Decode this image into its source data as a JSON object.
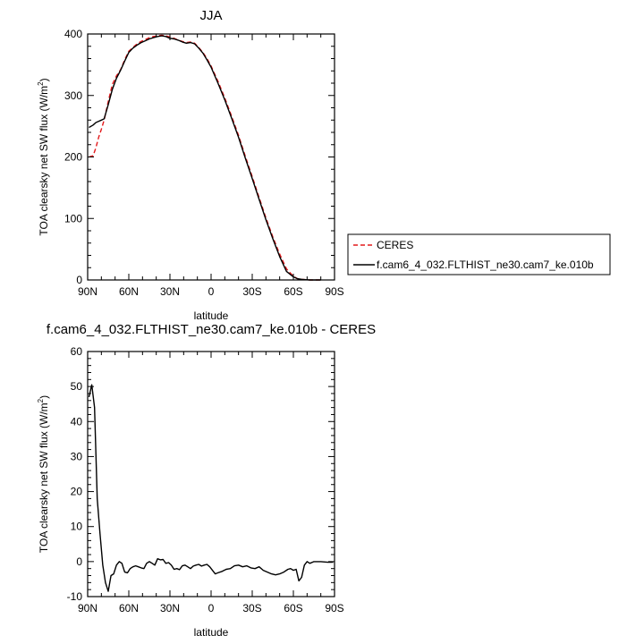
{
  "chart_data": [
    {
      "type": "line",
      "title": "JJA",
      "xlabel": "latitude",
      "ylabel": "TOA clearsky net SW flux (W/m²)",
      "ylabel_parts": [
        "TOA clearsky net SW flux (W/m",
        "2",
        ")"
      ],
      "xlim": [
        90,
        -90
      ],
      "ylim": [
        0,
        400
      ],
      "xticks": [
        90,
        60,
        30,
        0,
        -30,
        -60,
        -90
      ],
      "xtick_labels": [
        "90N",
        "60N",
        "30N",
        "0",
        "30S",
        "60S",
        "90S"
      ],
      "yticks": [
        0,
        100,
        200,
        300,
        400
      ],
      "ytick_labels": [
        "0",
        "100",
        "200",
        "300",
        "400"
      ],
      "grid": false,
      "legend_position": "right",
      "series": [
        {
          "name": "CERES",
          "color": "#e31a1c",
          "dash": "dashed",
          "x": [
            89,
            86,
            84,
            82,
            80,
            78,
            75,
            72,
            69,
            66,
            63,
            60,
            57,
            54,
            51,
            48,
            45,
            42,
            39,
            36,
            33,
            30,
            27,
            24,
            21,
            18,
            15,
            12,
            9,
            6,
            3,
            0,
            -5,
            -10,
            -15,
            -20,
            -25,
            -30,
            -35,
            -40,
            -45,
            -50,
            -55,
            -60,
            -63,
            -66,
            -69,
            -72,
            -76,
            -80
          ],
          "y": [
            200,
            202,
            215,
            232,
            245,
            260,
            290,
            318,
            332,
            342,
            358,
            372,
            378,
            384,
            388,
            391,
            394,
            396,
            397,
            398,
            397,
            395,
            393,
            390,
            388,
            386,
            387,
            385,
            378,
            370,
            360,
            348,
            323,
            296,
            266,
            235,
            201,
            168,
            134,
            101,
            70,
            42,
            18,
            6,
            2,
            1,
            0.5,
            0,
            0,
            0
          ]
        },
        {
          "name": "f.cam6_4_032.FLTHIST_ne30.cam7_ke.010b",
          "color": "#000000",
          "dash": "solid",
          "x": [
            89,
            86,
            84,
            82,
            80,
            78,
            75,
            72,
            69,
            66,
            63,
            60,
            57,
            54,
            51,
            48,
            45,
            42,
            39,
            36,
            33,
            30,
            27,
            24,
            21,
            18,
            15,
            12,
            9,
            6,
            3,
            0,
            -5,
            -10,
            -15,
            -20,
            -25,
            -30,
            -35,
            -40,
            -45,
            -50,
            -55,
            -60,
            -63,
            -66,
            -69,
            -72,
            -76,
            -80
          ],
          "y": [
            248,
            252,
            256,
            258,
            260,
            262,
            285,
            310,
            328,
            341,
            356,
            370,
            377,
            382,
            386,
            389,
            392,
            394,
            396,
            397,
            396,
            393,
            392,
            390,
            387,
            385,
            386,
            384,
            377,
            369,
            358,
            346,
            320,
            293,
            263,
            232,
            198,
            165,
            131,
            98,
            67,
            38,
            14,
            5,
            2,
            1,
            0.5,
            0,
            0,
            0
          ]
        }
      ]
    },
    {
      "type": "line",
      "title": "f.cam6_4_032.FLTHIST_ne30.cam7_ke.010b - CERES",
      "xlabel": "latitude",
      "ylabel": "TOA clearsky net SW flux (W/m²)",
      "ylabel_parts": [
        "TOA clearsky net SW flux (W/m",
        "2",
        ")"
      ],
      "xlim": [
        90,
        -90
      ],
      "ylim": [
        -10,
        60
      ],
      "xticks": [
        90,
        60,
        30,
        0,
        -30,
        -60,
        -90
      ],
      "xtick_labels": [
        "90N",
        "60N",
        "30N",
        "0",
        "30S",
        "60S",
        "90S"
      ],
      "yticks": [
        -10,
        0,
        10,
        20,
        30,
        40,
        50,
        60
      ],
      "ytick_labels": [
        "-10",
        "0",
        "10",
        "20",
        "30",
        "40",
        "50",
        "60"
      ],
      "grid": false,
      "series": [
        {
          "name": "",
          "color": "#000000",
          "dash": "solid",
          "x": [
            89,
            87,
            85,
            83,
            81,
            79,
            77,
            75,
            73,
            71,
            69,
            67,
            65,
            63,
            61,
            59,
            57,
            55,
            53,
            51,
            49,
            47,
            45,
            43,
            41,
            39,
            37,
            35,
            33,
            31,
            29,
            27,
            25,
            23,
            21,
            19,
            17,
            15,
            13,
            11,
            9,
            7,
            5,
            3,
            1,
            -1,
            -3,
            -5,
            -8,
            -11,
            -14,
            -17,
            -20,
            -23,
            -26,
            -29,
            -32,
            -35,
            -38,
            -41,
            -44,
            -47,
            -50,
            -53,
            -56,
            -58,
            -60,
            -62,
            -64,
            -66,
            -68,
            -70,
            -72,
            -75,
            -80,
            -85,
            -89
          ],
          "y": [
            47,
            50.5,
            44,
            18,
            8,
            -1,
            -6,
            -8.5,
            -4,
            -3.5,
            -1,
            0,
            -0.5,
            -3,
            -3.2,
            -2,
            -1.5,
            -1.2,
            -1.5,
            -1.8,
            -2,
            -0.5,
            0,
            -0.5,
            -1,
            0.8,
            0.5,
            0.6,
            -0.5,
            -0.3,
            -1,
            -2.2,
            -2,
            -2.3,
            -1.2,
            -1,
            -1.5,
            -2,
            -1.3,
            -1,
            -0.8,
            -1.3,
            -1,
            -0.8,
            -1.5,
            -2.5,
            -3.5,
            -3.2,
            -2.8,
            -2.2,
            -2,
            -1.2,
            -1,
            -1.5,
            -1.2,
            -1.8,
            -2,
            -1.5,
            -2.5,
            -3,
            -3.5,
            -3.8,
            -3.5,
            -3,
            -2.2,
            -2,
            -2.5,
            -2.2,
            -5.5,
            -4.5,
            -1,
            0,
            -0.5,
            0,
            0,
            -0.2,
            -0.2
          ]
        }
      ]
    }
  ]
}
